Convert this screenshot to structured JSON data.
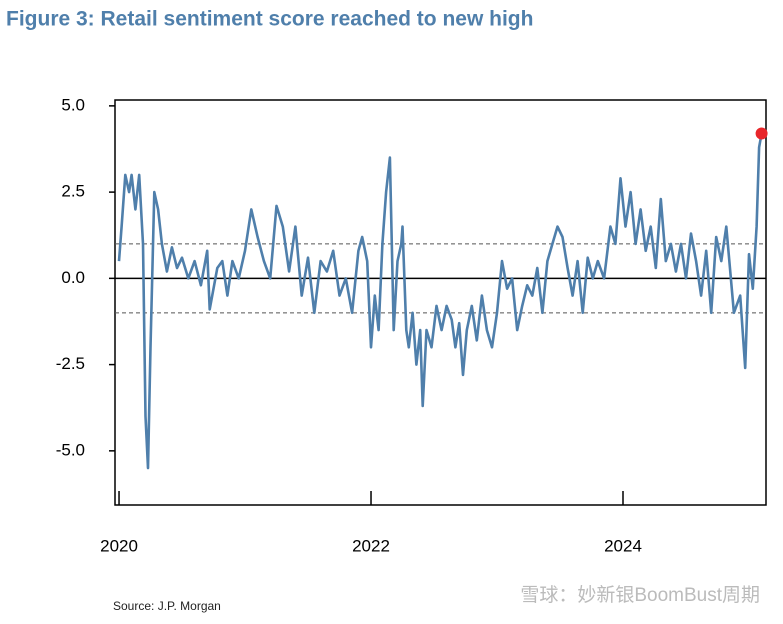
{
  "chart_data": {
    "type": "line",
    "title": "Figure 3: Retail sentiment score reached to new high",
    "source": "Source: J.P. Morgan",
    "watermark": "雪球：妙新银BoomBust周期",
    "x": [
      2020.0,
      2020.02,
      2020.05,
      2020.08,
      2020.1,
      2020.13,
      2020.16,
      2020.19,
      2020.21,
      2020.23,
      2020.25,
      2020.28,
      2020.31,
      2020.34,
      2020.38,
      2020.42,
      2020.46,
      2020.5,
      2020.55,
      2020.6,
      2020.65,
      2020.7,
      2020.72,
      2020.78,
      2020.82,
      2020.86,
      2020.9,
      2020.95,
      2021.0,
      2021.05,
      2021.1,
      2021.15,
      2021.2,
      2021.25,
      2021.3,
      2021.35,
      2021.4,
      2021.45,
      2021.5,
      2021.55,
      2021.6,
      2021.65,
      2021.7,
      2021.75,
      2021.8,
      2021.85,
      2021.9,
      2021.93,
      2021.97,
      2022.0,
      2022.03,
      2022.06,
      2022.09,
      2022.12,
      2022.15,
      2022.18,
      2022.21,
      2022.24,
      2022.25,
      2022.28,
      2022.3,
      2022.33,
      2022.36,
      2022.39,
      2022.41,
      2022.44,
      2022.48,
      2022.52,
      2022.56,
      2022.6,
      2022.64,
      2022.67,
      2022.7,
      2022.73,
      2022.76,
      2022.8,
      2022.84,
      2022.88,
      2022.92,
      2022.96,
      2023.0,
      2023.04,
      2023.08,
      2023.12,
      2023.16,
      2023.2,
      2023.24,
      2023.28,
      2023.32,
      2023.36,
      2023.4,
      2023.44,
      2023.48,
      2023.52,
      2023.56,
      2023.6,
      2023.64,
      2023.68,
      2023.72,
      2023.76,
      2023.8,
      2023.85,
      2023.9,
      2023.94,
      2023.98,
      2024.02,
      2024.06,
      2024.1,
      2024.14,
      2024.18,
      2024.22,
      2024.26,
      2024.3,
      2024.34,
      2024.38,
      2024.42,
      2024.46,
      2024.5,
      2024.54,
      2024.58,
      2024.62,
      2024.66,
      2024.7,
      2024.74,
      2024.78,
      2024.82,
      2024.88,
      2024.93,
      2024.97,
      2025.0,
      2025.03,
      2025.06,
      2025.08,
      2025.1
    ],
    "series": [
      {
        "color": "#4f7fab",
        "values": [
          0.5,
          1.5,
          3.0,
          2.5,
          3.0,
          2.0,
          3.0,
          1.0,
          -4.0,
          -5.5,
          -2.0,
          2.5,
          2.0,
          1.0,
          0.2,
          0.9,
          0.3,
          0.6,
          0.0,
          0.5,
          -0.2,
          0.8,
          -0.9,
          0.3,
          0.5,
          -0.5,
          0.5,
          0.0,
          0.8,
          2.0,
          1.2,
          0.5,
          0.0,
          2.1,
          1.5,
          0.2,
          1.5,
          -0.5,
          0.6,
          -1.0,
          0.5,
          0.2,
          0.8,
          -0.5,
          0.0,
          -1.0,
          0.8,
          1.2,
          0.5,
          -2.0,
          -0.5,
          -1.5,
          1.0,
          2.5,
          3.5,
          -1.5,
          0.5,
          1.0,
          1.5,
          -1.5,
          -2.0,
          -1.0,
          -2.5,
          -1.5,
          -3.7,
          -1.5,
          -2.0,
          -0.8,
          -1.5,
          -0.8,
          -1.2,
          -2.0,
          -1.3,
          -2.8,
          -1.5,
          -0.8,
          -1.8,
          -0.5,
          -1.5,
          -2.0,
          -1.0,
          0.5,
          -0.3,
          0.0,
          -1.5,
          -0.8,
          -0.2,
          -0.5,
          0.3,
          -1.0,
          0.5,
          1.0,
          1.5,
          1.2,
          0.3,
          -0.5,
          0.5,
          -1.0,
          0.6,
          0.0,
          0.5,
          0.0,
          1.5,
          1.0,
          2.9,
          1.5,
          2.5,
          1.0,
          2.0,
          0.8,
          1.5,
          0.3,
          2.3,
          0.5,
          1.0,
          0.2,
          1.0,
          0.0,
          1.3,
          0.5,
          -0.5,
          0.8,
          -1.0,
          1.2,
          0.5,
          1.5,
          -1.0,
          -0.5,
          -2.6,
          0.7,
          -0.3,
          1.5,
          3.8,
          4.2
        ]
      }
    ],
    "highlight_color": "#e8262a",
    "reference_lines": [
      {
        "value": 1,
        "style": "dashed"
      },
      {
        "value": 0,
        "style": "solid"
      },
      {
        "value": -1,
        "style": "dashed"
      }
    ],
    "xlim": [
      2019.968,
      2025.135
    ],
    "xticks": [
      2020,
      2022,
      2024
    ],
    "ylim": [
      -6.57,
      5.17
    ],
    "yticks": [
      {
        "value": 5,
        "label": "5.0"
      },
      2.5,
      {
        "value": 0,
        "label": "0.0"
      },
      -2.5,
      {
        "value": -5,
        "label": "-5.0"
      }
    ]
  }
}
